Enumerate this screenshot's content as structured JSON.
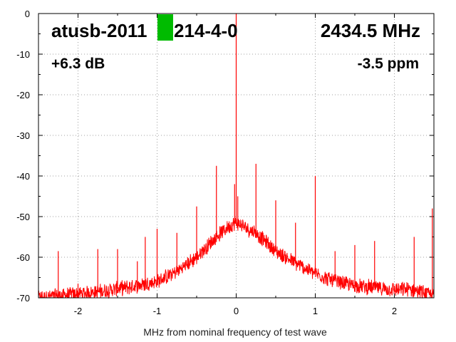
{
  "chart_data": {
    "type": "line",
    "title": "",
    "xlabel": "MHz from nominal frequency of test wave",
    "ylabel": "",
    "xlim": [
      -2.5,
      2.5
    ],
    "ylim": [
      -70,
      0
    ],
    "x_ticks": [
      -2,
      -1,
      0,
      1,
      2
    ],
    "x_tick_labels": [
      "-2",
      "-1",
      "0",
      "1",
      "2"
    ],
    "y_ticks": [
      0,
      -10,
      -20,
      -30,
      -40,
      -50,
      -60,
      -70
    ],
    "y_tick_labels": [
      "0",
      "-10",
      "-20",
      "-30",
      "-40",
      "-50",
      "-60",
      "-70"
    ],
    "grid": true,
    "series_color": "#ff0000",
    "marker_color": "#00bb00",
    "annotations": {
      "device": "atusb-2011",
      "device_suffix": "214-4-0",
      "frequency": "2434.5 MHz",
      "power": "+6.3 dB",
      "offset": "-3.5 ppm"
    },
    "spurs": [
      {
        "x": -2.25,
        "y": -58.5
      },
      {
        "x": -2.0,
        "y": -66.5
      },
      {
        "x": -1.75,
        "y": -58.0
      },
      {
        "x": -1.5,
        "y": -58.0
      },
      {
        "x": -1.25,
        "y": -61.0
      },
      {
        "x": -1.15,
        "y": -55.0
      },
      {
        "x": -1.0,
        "y": -53.0
      },
      {
        "x": -0.75,
        "y": -54.0
      },
      {
        "x": -0.5,
        "y": -47.5
      },
      {
        "x": -0.25,
        "y": -37.5
      },
      {
        "x": -0.02,
        "y": -42.0
      },
      {
        "x": 0.0,
        "y": 0.0
      },
      {
        "x": 0.02,
        "y": -45.0
      },
      {
        "x": 0.25,
        "y": -37.0
      },
      {
        "x": 0.5,
        "y": -46.0
      },
      {
        "x": 0.75,
        "y": -51.5
      },
      {
        "x": 1.0,
        "y": -40.0
      },
      {
        "x": 1.25,
        "y": -58.5
      },
      {
        "x": 1.5,
        "y": -57.0
      },
      {
        "x": 1.75,
        "y": -56.0
      },
      {
        "x": 2.0,
        "y": -67.0
      },
      {
        "x": 2.25,
        "y": -55.0
      },
      {
        "x": 2.48,
        "y": -48.0
      }
    ],
    "noise_floor": [
      {
        "x": -2.5,
        "y": -70.0
      },
      {
        "x": -2.25,
        "y": -69.5
      },
      {
        "x": -2.0,
        "y": -69.0
      },
      {
        "x": -1.75,
        "y": -68.5
      },
      {
        "x": -1.5,
        "y": -67.8
      },
      {
        "x": -1.25,
        "y": -67.0
      },
      {
        "x": -1.0,
        "y": -66.0
      },
      {
        "x": -0.75,
        "y": -63.5
      },
      {
        "x": -0.5,
        "y": -60.0
      },
      {
        "x": -0.25,
        "y": -55.0
      },
      {
        "x": -0.1,
        "y": -52.5
      },
      {
        "x": 0.0,
        "y": -51.5
      },
      {
        "x": 0.1,
        "y": -52.5
      },
      {
        "x": 0.25,
        "y": -54.0
      },
      {
        "x": 0.5,
        "y": -58.5
      },
      {
        "x": 0.75,
        "y": -61.5
      },
      {
        "x": 1.0,
        "y": -64.0
      },
      {
        "x": 1.25,
        "y": -66.0
      },
      {
        "x": 1.5,
        "y": -67.0
      },
      {
        "x": 1.75,
        "y": -67.5
      },
      {
        "x": 2.0,
        "y": -68.0
      },
      {
        "x": 2.25,
        "y": -68.0
      },
      {
        "x": 2.5,
        "y": -69.5
      }
    ]
  }
}
